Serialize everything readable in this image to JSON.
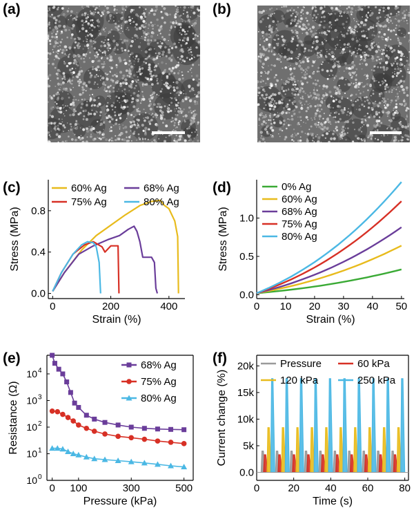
{
  "panels": {
    "a": {
      "label": "(a)"
    },
    "b": {
      "label": "(b)"
    },
    "c": {
      "label": "(c)"
    },
    "d": {
      "label": "(d)"
    },
    "e": {
      "label": "(e)"
    },
    "f": {
      "label": "(f)"
    }
  },
  "colors": {
    "green": "#3aaa35",
    "yellow": "#e8bb1c",
    "purple": "#6a3d9a",
    "red": "#d73025",
    "cyan": "#4bb8e4",
    "gray": "#9a9a9a"
  },
  "images": [
    {
      "panel": "a",
      "description_icon": "sem-micrograph-icon",
      "has_scale_bar": true
    },
    {
      "panel": "b",
      "description_icon": "sem-micrograph-icon",
      "has_scale_bar": true
    }
  ],
  "chart_data": [
    {
      "panel": "c",
      "type": "line",
      "xlabel": "Strain (%)",
      "ylabel": "Stress (MPa)",
      "xlim": [
        -15,
        455
      ],
      "ylim": [
        -0.05,
        1.1
      ],
      "xticks": [
        "0",
        "200",
        "400"
      ],
      "yticks": [
        "0.0",
        "0.4",
        "0.8"
      ],
      "legend": {
        "placement": "top",
        "columns": 2
      },
      "series": [
        {
          "name": "60% Ag",
          "color": "#e8bb1c",
          "points": [
            [
              0,
              0.02
            ],
            [
              40,
              0.2
            ],
            [
              100,
              0.42
            ],
            [
              150,
              0.56
            ],
            [
              200,
              0.66
            ],
            [
              250,
              0.76
            ],
            [
              300,
              0.85
            ],
            [
              340,
              0.89
            ],
            [
              370,
              0.9
            ],
            [
              385,
              0.85
            ],
            [
              400,
              0.82
            ],
            [
              420,
              0.7
            ],
            [
              430,
              0.55
            ],
            [
              433,
              0.0
            ]
          ]
        },
        {
          "name": "68% Ag",
          "color": "#6a3d9a",
          "points": [
            [
              0,
              0.02
            ],
            [
              40,
              0.2
            ],
            [
              90,
              0.38
            ],
            [
              140,
              0.46
            ],
            [
              190,
              0.52
            ],
            [
              230,
              0.56
            ],
            [
              260,
              0.62
            ],
            [
              280,
              0.65
            ],
            [
              290,
              0.6
            ],
            [
              300,
              0.5
            ],
            [
              310,
              0.35
            ],
            [
              340,
              0.35
            ],
            [
              350,
              0.3
            ],
            [
              355,
              0.05
            ],
            [
              360,
              0.0
            ]
          ]
        },
        {
          "name": "75% Ag",
          "color": "#d73025",
          "points": [
            [
              0,
              0.02
            ],
            [
              30,
              0.2
            ],
            [
              70,
              0.38
            ],
            [
              110,
              0.47
            ],
            [
              140,
              0.5
            ],
            [
              170,
              0.45
            ],
            [
              180,
              0.4
            ],
            [
              200,
              0.46
            ],
            [
              225,
              0.46
            ],
            [
              228,
              0.0
            ]
          ]
        },
        {
          "name": "80% Ag",
          "color": "#4bb8e4",
          "points": [
            [
              0,
              0.02
            ],
            [
              30,
              0.2
            ],
            [
              70,
              0.38
            ],
            [
              100,
              0.47
            ],
            [
              120,
              0.5
            ],
            [
              140,
              0.49
            ],
            [
              150,
              0.45
            ],
            [
              160,
              0.3
            ],
            [
              165,
              0.0
            ]
          ]
        }
      ]
    },
    {
      "panel": "d",
      "type": "line",
      "xlabel": "Strain (%)",
      "ylabel": "Stress (MPa)",
      "xlim": [
        0,
        51
      ],
      "ylim": [
        -0.05,
        1.5
      ],
      "xticks": [
        "0",
        "10",
        "20",
        "30",
        "40",
        "50"
      ],
      "yticks": [
        "0.0",
        "0.5",
        "1.0"
      ],
      "legend": {
        "placement": "top-left"
      },
      "series": [
        {
          "name": "0% Ag",
          "color": "#3aaa35",
          "end": 0.31
        },
        {
          "name": "60% Ag",
          "color": "#e8bb1c",
          "end": 0.62
        },
        {
          "name": "68% Ag",
          "color": "#6a3d9a",
          "end": 0.86
        },
        {
          "name": "75% Ag",
          "color": "#d73025",
          "end": 1.2
        },
        {
          "name": "80% Ag",
          "color": "#4bb8e4",
          "end": 1.45
        }
      ]
    },
    {
      "panel": "e",
      "type": "scatter",
      "xlabel": "Pressure (kPa)",
      "ylabel": "Resistance (Ω)",
      "yscale": "log",
      "xlim": [
        -20,
        535
      ],
      "ylim_log10": [
        0,
        4.7
      ],
      "xticks": [
        "0",
        "100",
        "300",
        "500"
      ],
      "yticks": [
        {
          "base": "10",
          "exp": "4"
        },
        {
          "base": "10",
          "exp": "3"
        },
        {
          "base": "10",
          "exp": "2"
        },
        {
          "base": "10",
          "exp": "1"
        },
        {
          "base": "10",
          "exp": "0"
        }
      ],
      "legend": {
        "placement": "top-right"
      },
      "series": [
        {
          "name": "68% Ag",
          "color": "#6a3d9a",
          "marker": "square",
          "points": [
            [
              0,
              50000
            ],
            [
              10,
              25000
            ],
            [
              25,
              15000
            ],
            [
              40,
              10000
            ],
            [
              55,
              5000
            ],
            [
              70,
              2000
            ],
            [
              85,
              800
            ],
            [
              100,
              550
            ],
            [
              130,
              280
            ],
            [
              160,
              200
            ],
            [
              200,
              150
            ],
            [
              250,
              120
            ],
            [
              300,
              100
            ],
            [
              350,
              90
            ],
            [
              400,
              85
            ],
            [
              450,
              82
            ],
            [
              500,
              80
            ]
          ]
        },
        {
          "name": "75% Ag",
          "color": "#d73025",
          "marker": "circle",
          "points": [
            [
              0,
              400
            ],
            [
              20,
              380
            ],
            [
              40,
              300
            ],
            [
              60,
              230
            ],
            [
              80,
              170
            ],
            [
              100,
              120
            ],
            [
              130,
              90
            ],
            [
              160,
              70
            ],
            [
              200,
              55
            ],
            [
              250,
              45
            ],
            [
              300,
              40
            ],
            [
              350,
              35
            ],
            [
              400,
              30
            ],
            [
              450,
              27
            ],
            [
              500,
              24
            ]
          ]
        },
        {
          "name": "80% Ag",
          "color": "#4bb8e4",
          "marker": "triangle",
          "points": [
            [
              0,
              16
            ],
            [
              20,
              16
            ],
            [
              40,
              15
            ],
            [
              60,
              12
            ],
            [
              80,
              10
            ],
            [
              100,
              9
            ],
            [
              130,
              7.5
            ],
            [
              160,
              6.5
            ],
            [
              200,
              6
            ],
            [
              250,
              5.5
            ],
            [
              300,
              5
            ],
            [
              350,
              4.5
            ],
            [
              400,
              4
            ],
            [
              450,
              3.5
            ],
            [
              500,
              3.2
            ]
          ]
        }
      ]
    },
    {
      "panel": "f",
      "type": "line",
      "xlabel": "Time (s)",
      "ylabel": "Current change (%)",
      "xlim": [
        0,
        82
      ],
      "ylim": [
        -1500,
        22000
      ],
      "xticks": [
        "0",
        "20",
        "40",
        "60",
        "80"
      ],
      "yticks": [
        {
          "value": 0,
          "label": "0.0"
        },
        {
          "value": 5000,
          "label": "5k"
        },
        {
          "value": 10000,
          "label": "10k"
        },
        {
          "value": 15000,
          "label": "15k"
        },
        {
          "value": 20000,
          "label": "20k"
        }
      ],
      "legend": {
        "placement": "top",
        "columns": 2
      },
      "cycles": {
        "count": 10,
        "first_start_s": 2.4,
        "period_s": 7.8
      },
      "series": [
        {
          "name": "Pressure",
          "color": "#9a9a9a",
          "peak": 4000,
          "offset_s": 0.0
        },
        {
          "name": "60 kPa",
          "color": "#d73025",
          "peak": 3300,
          "offset_s": 1.3
        },
        {
          "name": "120 kPa",
          "color": "#e8bb1c",
          "peak": 8400,
          "offset_s": 3.2
        },
        {
          "name": "250 kPa",
          "color": "#4bb8e4",
          "peak": 17600,
          "offset_s": 5.2
        }
      ]
    }
  ]
}
